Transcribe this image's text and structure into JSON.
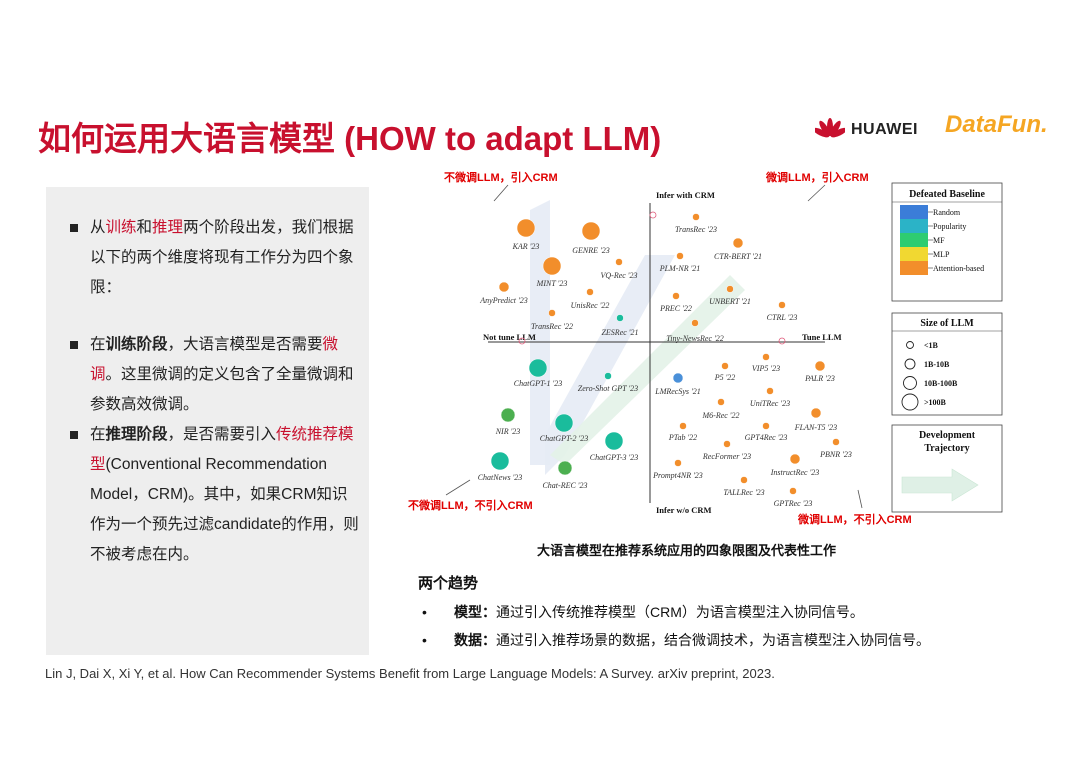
{
  "title": "如何运用大语言模型 (HOW to adapt LLM)",
  "logos": {
    "huawei": "HUAWEI",
    "datafun": "DataFun."
  },
  "left_panel": {
    "p1": {
      "a": "从",
      "b": "训练",
      "c": "和",
      "d": "推理",
      "e": "两个阶段出发，我们根据以下的两个维度将现有工作分为四个象限："
    },
    "p2": {
      "a": "在",
      "b": "训练阶段",
      "c": "，大语言模型是否需要",
      "d": "微调",
      "e": "。这里微调的定义包含了全量微调和参数高效微调。"
    },
    "p3": {
      "a": "在",
      "b": "推理阶段",
      "c": "，是否需要引入",
      "d": "传统推荐模型",
      "e": "(Conventional Recommendation Model，CRM)。其中，如果CRM知识作为一个预先过滤candidate的作用，则不被考虑在内。"
    }
  },
  "diagram": {
    "quadrants": {
      "top_left": "不微调LLM，引入CRM",
      "top_right": "微调LLM，引入CRM",
      "bottom_left": "不微调LLM，不引入CRM",
      "bottom_right": "微调LLM，不引入CRM"
    },
    "axes": {
      "top": "Infer with CRM",
      "bottom": "Infer w/o CRM",
      "left": "Not tune LLM",
      "right": "Tune LLM"
    },
    "models": [
      {
        "name": "KAR '23",
        "color": "#f28e2b",
        "size": "xl",
        "q": "top-left"
      },
      {
        "name": "GENRE '23",
        "color": "#f28e2b",
        "size": "xl",
        "q": "top-left"
      },
      {
        "name": "MINT '23",
        "color": "#f28e2b",
        "size": "xl",
        "q": "top-left"
      },
      {
        "name": "VQ-Rec '23",
        "color": "#f28e2b",
        "size": "s",
        "q": "top-left"
      },
      {
        "name": "AnyPredict '23",
        "color": "#f28e2b",
        "size": "m",
        "q": "top-left"
      },
      {
        "name": "UnisRec '22",
        "color": "#f28e2b",
        "size": "s",
        "q": "top-left"
      },
      {
        "name": "TransRec '22",
        "color": "#f28e2b",
        "size": "s",
        "q": "top-left"
      },
      {
        "name": "ZESRec '21",
        "color": "#1abc9c",
        "size": "s",
        "q": "top-left"
      },
      {
        "name": "TransRec '23",
        "color": "#f28e2b",
        "size": "s",
        "q": "top-right"
      },
      {
        "name": "CTR-BERT '21",
        "color": "#f28e2b",
        "size": "m",
        "q": "top-right"
      },
      {
        "name": "PLM-NR '21",
        "color": "#f28e2b",
        "size": "s",
        "q": "top-right"
      },
      {
        "name": "UNBERT '21",
        "color": "#f28e2b",
        "size": "s",
        "q": "top-right"
      },
      {
        "name": "PREC '22",
        "color": "#f28e2b",
        "size": "s",
        "q": "top-right"
      },
      {
        "name": "CTRL '23",
        "color": "#f28e2b",
        "size": "s",
        "q": "top-right"
      },
      {
        "name": "Tiny-NewsRec '22",
        "color": "#f28e2b",
        "size": "s",
        "q": "top-right"
      },
      {
        "name": "ChatGPT-1 '23",
        "color": "#1abc9c",
        "size": "xl",
        "q": "bottom-left"
      },
      {
        "name": "Zero-Shot GPT '23",
        "color": "#1abc9c",
        "size": "s",
        "q": "bottom-left"
      },
      {
        "name": "NIR '23",
        "color": "#4caf50",
        "size": "l",
        "q": "bottom-left"
      },
      {
        "name": "ChatGPT-2 '23",
        "color": "#1abc9c",
        "size": "xl",
        "q": "bottom-left"
      },
      {
        "name": "ChatGPT-3 '23",
        "color": "#1abc9c",
        "size": "xl",
        "q": "bottom-left"
      },
      {
        "name": "ChatNews '23",
        "color": "#1abc9c",
        "size": "xl",
        "q": "bottom-left"
      },
      {
        "name": "Chat-REC '23",
        "color": "#4caf50",
        "size": "l",
        "q": "bottom-left"
      },
      {
        "name": "VIP5 '23",
        "color": "#f28e2b",
        "size": "s",
        "q": "bottom-right"
      },
      {
        "name": "P5 '22",
        "color": "#f28e2b",
        "size": "s",
        "q": "bottom-right"
      },
      {
        "name": "PALR '23",
        "color": "#f28e2b",
        "size": "m",
        "q": "bottom-right"
      },
      {
        "name": "LMRecSys '21",
        "color": "#4a90d9",
        "size": "m",
        "q": "bottom-right"
      },
      {
        "name": "UniTRec '23",
        "color": "#f28e2b",
        "size": "s",
        "q": "bottom-right"
      },
      {
        "name": "M6-Rec '22",
        "color": "#f28e2b",
        "size": "s",
        "q": "bottom-right"
      },
      {
        "name": "FLAN-T5 '23",
        "color": "#f28e2b",
        "size": "m",
        "q": "bottom-right"
      },
      {
        "name": "PTab '22",
        "color": "#f28e2b",
        "size": "s",
        "q": "bottom-right"
      },
      {
        "name": "GPT4Rec '23",
        "color": "#f28e2b",
        "size": "s",
        "q": "bottom-right"
      },
      {
        "name": "RecFormer '23",
        "color": "#f28e2b",
        "size": "s",
        "q": "bottom-right"
      },
      {
        "name": "PBNR '23",
        "color": "#f28e2b",
        "size": "s",
        "q": "bottom-right"
      },
      {
        "name": "Prompt4NR '23",
        "color": "#f28e2b",
        "size": "s",
        "q": "bottom-right"
      },
      {
        "name": "InstructRec '23",
        "color": "#f28e2b",
        "size": "m",
        "q": "bottom-right"
      },
      {
        "name": "TALLRec '23",
        "color": "#f28e2b",
        "size": "s",
        "q": "bottom-right"
      },
      {
        "name": "GPTRec '23",
        "color": "#f28e2b",
        "size": "s",
        "q": "bottom-right"
      }
    ],
    "legend_baseline": {
      "title": "Defeated Baseline",
      "items": [
        {
          "label": "Random",
          "color": "#3b7dd8"
        },
        {
          "label": "Popularity",
          "color": "#2bb3c7"
        },
        {
          "label": "MF",
          "color": "#2ecc71"
        },
        {
          "label": "MLP",
          "color": "#f1d831"
        },
        {
          "label": "Attention-based",
          "color": "#f28e2b"
        }
      ]
    },
    "legend_size": {
      "title": "Size of LLM",
      "items": [
        "<1B",
        "1B-10B",
        "10B-100B",
        ">100B"
      ]
    },
    "legend_traj": {
      "title": "Development Trajectory"
    }
  },
  "caption": "大语言模型在推荐系统应用的四象限图及代表性工作",
  "trends": {
    "title": "两个趋势",
    "items": [
      {
        "bullet": "•",
        "label": "模型：",
        "text": "通过引入传统推荐模型（CRM）为语言模型注入协同信号。"
      },
      {
        "bullet": "•",
        "label": "数据：",
        "text": "通过引入推荐场景的数据，结合微调技术，为语言模型注入协同信号。"
      }
    ]
  },
  "citation": "Lin J, Dai X, Xi Y, et al. How Can Recommender Systems Benefit from Large Language Models: A Survey. arXiv preprint, 2023."
}
